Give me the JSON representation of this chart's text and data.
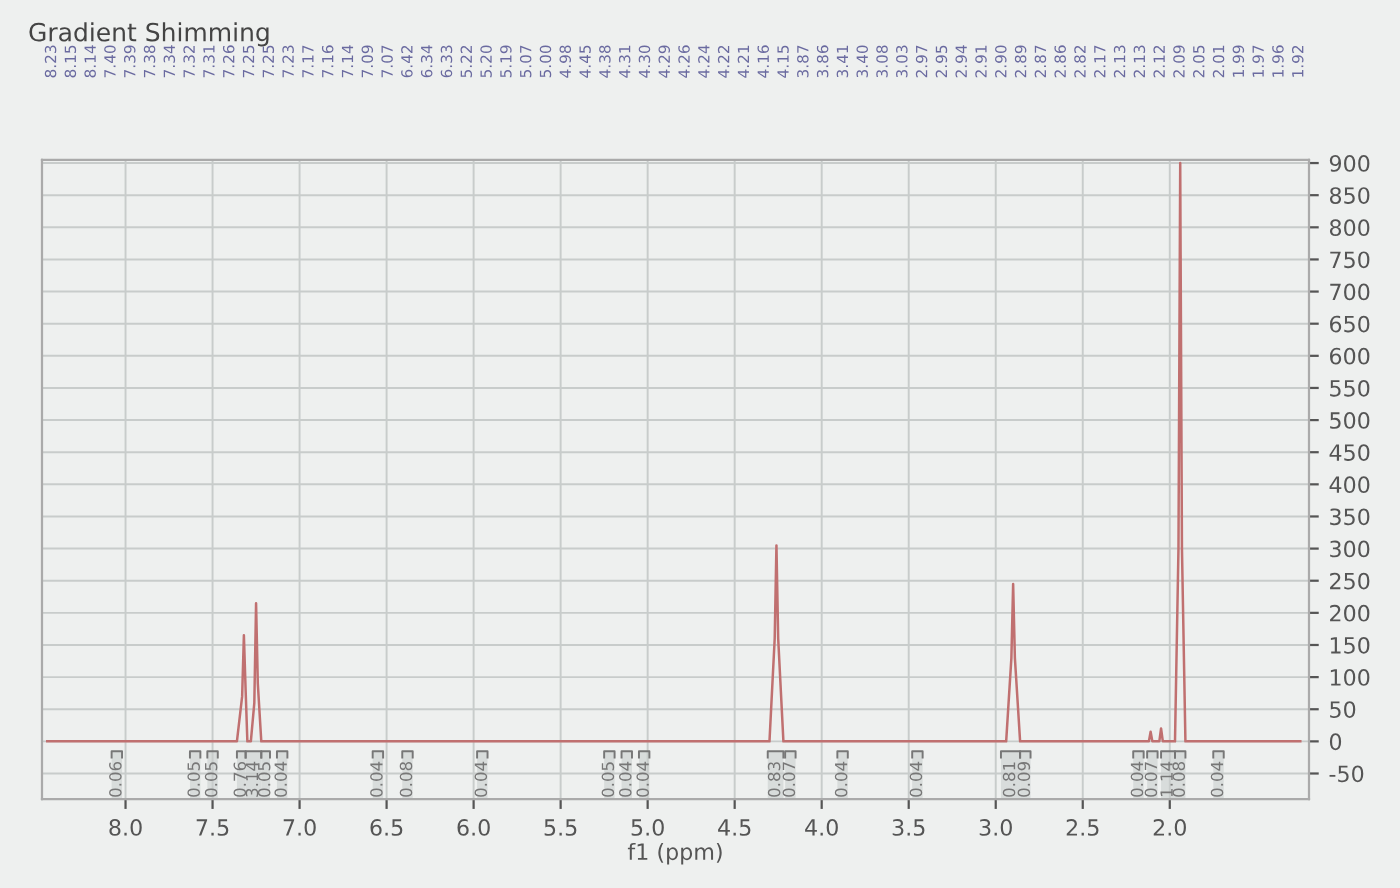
{
  "chart_data": {
    "type": "line",
    "title": "Gradient Shimming",
    "xlabel": "f1 (ppm)",
    "xlim": [
      8.48,
      1.2
    ],
    "xticks": [
      {
        "value": 8.0,
        "label": "8.0"
      },
      7.5,
      {
        "value": 7.0,
        "label": "7.0"
      },
      6.5,
      {
        "value": 6.0,
        "label": "6.0"
      },
      5.5,
      {
        "value": 5.0,
        "label": "5.0"
      },
      4.5,
      {
        "value": 4.0,
        "label": "4.0"
      },
      3.5,
      {
        "value": 3.0,
        "label": "3.0"
      },
      2.5,
      {
        "value": 2.0,
        "label": "2.0"
      }
    ],
    "ylim": [
      -90,
      905
    ],
    "yticks": [
      -50,
      0,
      50,
      100,
      150,
      200,
      250,
      300,
      350,
      400,
      450,
      500,
      550,
      600,
      650,
      700,
      750,
      800,
      850,
      900
    ],
    "grid": true,
    "legend": false,
    "marker": "none",
    "line_style": "solid",
    "series": [
      {
        "color": "#c07070",
        "x": [
          8.45,
          7.36,
          7.33,
          7.32,
          7.31,
          7.3,
          7.28,
          7.26,
          7.25,
          7.24,
          7.22,
          7.2,
          4.3,
          4.27,
          4.26,
          4.25,
          4.22,
          2.94,
          2.91,
          2.9,
          2.89,
          2.86,
          2.12,
          2.11,
          2.1,
          2.06,
          2.05,
          2.04,
          1.97,
          1.95,
          1.94,
          1.93,
          1.91,
          1.25
        ],
        "values": [
          0,
          0,
          70,
          165,
          80,
          0,
          0,
          60,
          215,
          90,
          0,
          0,
          0,
          160,
          305,
          160,
          0,
          0,
          130,
          245,
          130,
          0,
          0,
          15,
          0,
          0,
          20,
          0,
          0,
          300,
          900,
          300,
          0,
          0
        ]
      }
    ],
    "bands": [
      {
        "axis": "x",
        "from": 8.08,
        "to": 8.02,
        "label": "0.06"
      },
      {
        "axis": "x",
        "from": 7.63,
        "to": 7.57,
        "label": "0.05"
      },
      {
        "axis": "x",
        "from": 7.53,
        "to": 7.47,
        "label": "0.05"
      },
      {
        "axis": "x",
        "from": 7.36,
        "to": 7.31,
        "label": "0.76"
      },
      {
        "axis": "x",
        "from": 7.31,
        "to": 7.22,
        "label": "3.14"
      },
      {
        "axis": "x",
        "from": 7.22,
        "to": 7.17,
        "label": "0.05"
      },
      {
        "axis": "x",
        "from": 7.13,
        "to": 7.07,
        "label": "0.04"
      },
      {
        "axis": "x",
        "from": 6.58,
        "to": 6.52,
        "label": "0.04"
      },
      {
        "axis": "x",
        "from": 6.41,
        "to": 6.35,
        "label": "0.08"
      },
      {
        "axis": "x",
        "from": 5.98,
        "to": 5.92,
        "label": "0.04"
      },
      {
        "axis": "x",
        "from": 5.25,
        "to": 5.19,
        "label": "0.05"
      },
      {
        "axis": "x",
        "from": 5.15,
        "to": 5.09,
        "label": "0.04"
      },
      {
        "axis": "x",
        "from": 5.05,
        "to": 4.99,
        "label": "0.04"
      },
      {
        "axis": "x",
        "from": 4.31,
        "to": 4.22,
        "label": "0.83"
      },
      {
        "axis": "x",
        "from": 4.21,
        "to": 4.15,
        "label": "0.07"
      },
      {
        "axis": "x",
        "from": 3.91,
        "to": 3.85,
        "label": "0.04"
      },
      {
        "axis": "x",
        "from": 3.48,
        "to": 3.42,
        "label": "0.04"
      },
      {
        "axis": "x",
        "from": 2.97,
        "to": 2.86,
        "label": "0.81"
      },
      {
        "axis": "x",
        "from": 2.86,
        "to": 2.8,
        "label": "0.09"
      },
      {
        "axis": "x",
        "from": 2.21,
        "to": 2.15,
        "label": "0.04"
      },
      {
        "axis": "x",
        "from": 2.13,
        "to": 2.07,
        "label": "0.07"
      },
      {
        "axis": "x",
        "from": 2.05,
        "to": 1.97,
        "label": "1.14"
      },
      {
        "axis": "x",
        "from": 1.97,
        "to": 1.91,
        "label": "0.08"
      },
      {
        "axis": "x",
        "from": 1.75,
        "to": 1.69,
        "label": "0.04"
      }
    ],
    "annotations": [
      "8.23",
      "8.15",
      "8.14",
      "7.40",
      "7.39",
      "7.38",
      "7.34",
      "7.32",
      "7.31",
      "7.26",
      "7.25",
      "7.25",
      "7.23",
      "7.17",
      "7.16",
      "7.14",
      "7.09",
      "7.07",
      "6.42",
      "6.34",
      "6.33",
      "5.22",
      "5.20",
      "5.19",
      "5.07",
      "5.00",
      "4.98",
      "4.45",
      "4.38",
      "4.31",
      "4.30",
      "4.29",
      "4.26",
      "4.24",
      "4.22",
      "4.21",
      "4.16",
      "4.15",
      "3.87",
      "3.86",
      "3.41",
      "3.40",
      "3.08",
      "3.03",
      "2.97",
      "2.95",
      "2.94",
      "2.91",
      "2.90",
      "2.89",
      "2.87",
      "2.86",
      "2.82",
      "2.17",
      "2.13",
      "2.13",
      "2.12",
      "2.09",
      "2.05",
      "2.01",
      "1.99",
      "1.97",
      "1.96",
      "1.92"
    ]
  }
}
